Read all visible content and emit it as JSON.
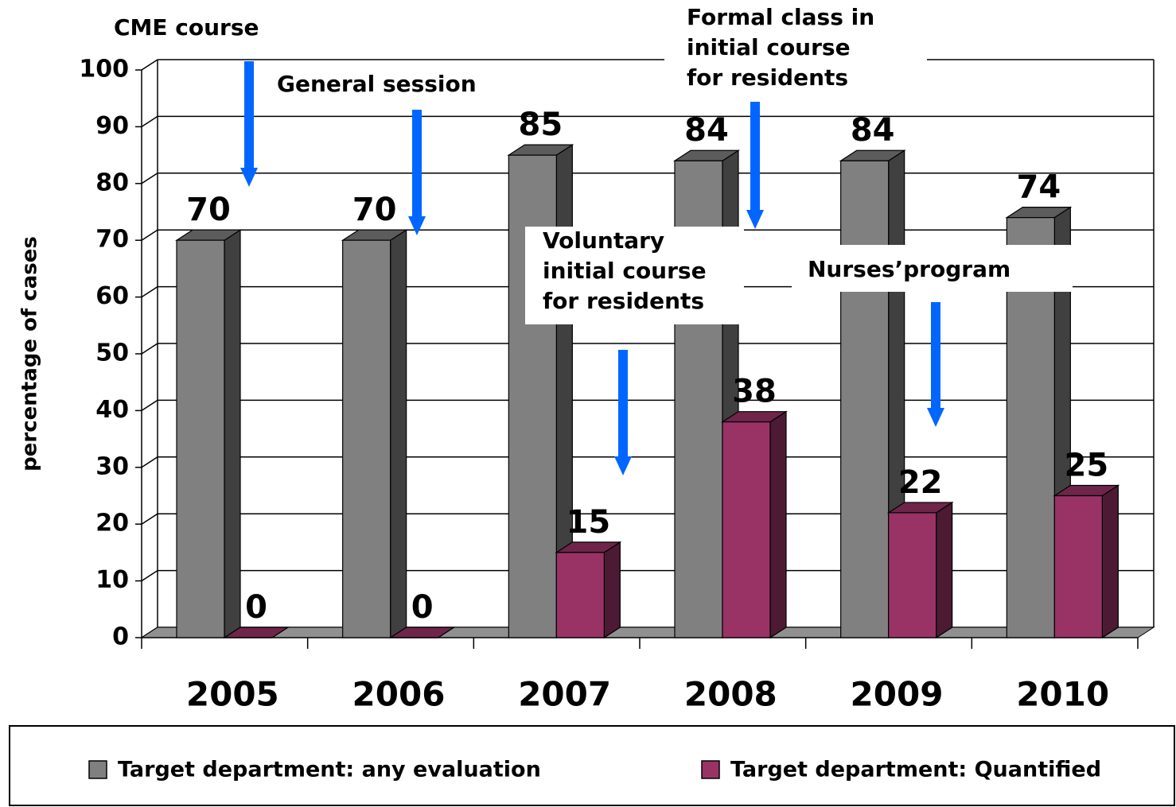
{
  "chart_data": {
    "type": "bar3d",
    "y_label": "percentage of cases",
    "categories": [
      "2005",
      "2006",
      "2007",
      "2008",
      "2009",
      "2010"
    ],
    "series": [
      {
        "name": "Target department: any evaluation",
        "color": "#808080",
        "values": [
          70,
          70,
          85,
          84,
          84,
          74
        ]
      },
      {
        "name": "Target department: Quantified",
        "color": "#993366",
        "values": [
          0,
          0,
          15,
          38,
          22,
          25
        ]
      }
    ],
    "ylim": [
      0,
      100
    ],
    "yticks": [
      0,
      10,
      20,
      30,
      40,
      50,
      60,
      70,
      80,
      90,
      100
    ],
    "grid": true,
    "annotations": [
      {
        "lines": [
          "CME course"
        ]
      },
      {
        "lines": [
          "General session"
        ]
      },
      {
        "lines": [
          "Voluntary",
          "initial course",
          "for residents"
        ]
      },
      {
        "lines": [
          "Formal class in",
          "initial course",
          "for residents"
        ]
      },
      {
        "lines": [
          "Nurses’program"
        ]
      }
    ]
  }
}
